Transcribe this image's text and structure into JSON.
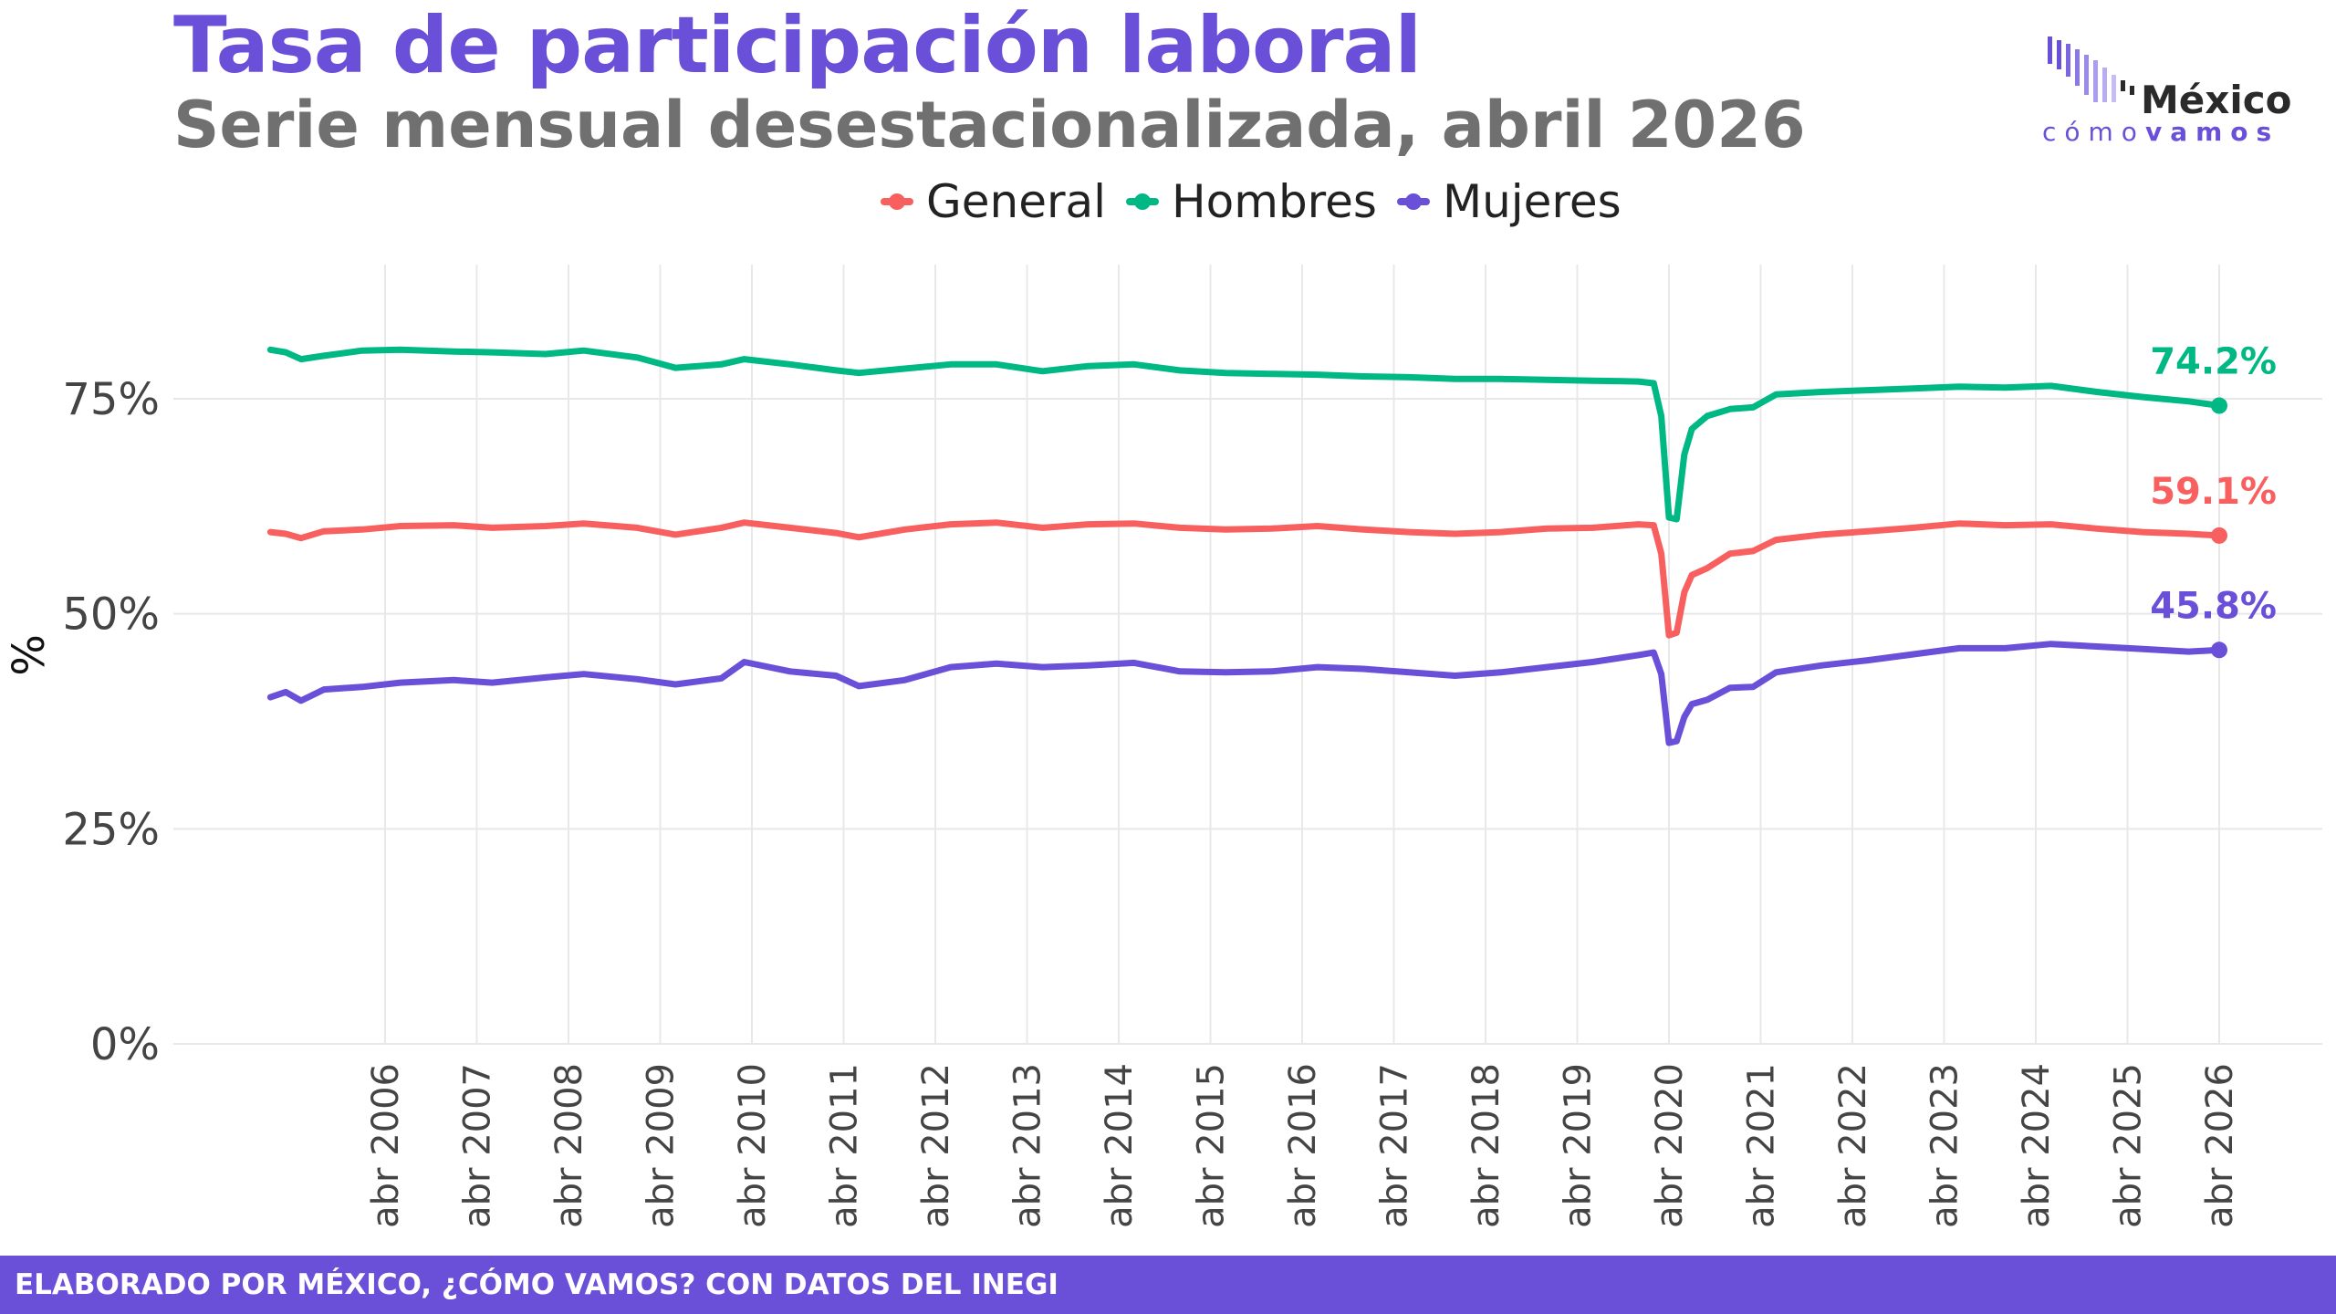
{
  "header": {
    "title": "Tasa de participación laboral",
    "subtitle": "Serie mensual desestacionalizada, abril 2026"
  },
  "logo": {
    "name": "México",
    "tagline_light": "cómo",
    "tagline_bold": "vamos"
  },
  "footer": {
    "credit": "ELABORADO POR MÉXICO, ¿CÓMO VAMOS? CON DATOS DEL INEGI"
  },
  "colors": {
    "title": "#6a4fd8",
    "general": "#f8605f",
    "hombres": "#00b884",
    "mujeres": "#6a4fd8",
    "footer_bg": "#6a4fd8",
    "grid": "#e8e8e8"
  },
  "chart_data": {
    "type": "line",
    "title": "Tasa de participación laboral",
    "subtitle": "Serie mensual desestacionalizada, abril 2026",
    "xlabel": "",
    "ylabel": "%",
    "ylim": [
      0,
      90
    ],
    "xlim": [
      "2005-01",
      "2026-04"
    ],
    "yticks": [
      0,
      25,
      50,
      75
    ],
    "ytick_labels": [
      "0%",
      "25%",
      "50%",
      "75%"
    ],
    "xtick_dates": [
      "2006-04",
      "2007-04",
      "2008-04",
      "2009-04",
      "2010-04",
      "2011-04",
      "2012-04",
      "2013-04",
      "2014-04",
      "2015-04",
      "2016-04",
      "2017-04",
      "2018-04",
      "2019-04",
      "2020-04",
      "2021-04",
      "2022-04",
      "2023-04",
      "2024-04",
      "2025-04",
      "2026-04"
    ],
    "xtick_labels": [
      "abr 2006",
      "abr 2007",
      "abr 2008",
      "abr 2009",
      "abr 2010",
      "abr 2011",
      "abr 2012",
      "abr 2013",
      "abr 2014",
      "abr 2015",
      "abr 2016",
      "abr 2017",
      "abr 2018",
      "abr 2019",
      "abr 2020",
      "abr 2021",
      "abr 2022",
      "abr 2023",
      "abr 2024",
      "abr 2025",
      "abr 2026"
    ],
    "grid": true,
    "legend_position": "top-center",
    "series": [
      {
        "name": "General",
        "color": "#f8605f",
        "end_label": "59.1%",
        "points": [
          [
            "2005-01",
            59.5
          ],
          [
            "2005-03",
            59.3
          ],
          [
            "2005-05",
            58.8
          ],
          [
            "2005-08",
            59.6
          ],
          [
            "2006-01",
            59.8
          ],
          [
            "2006-06",
            60.2
          ],
          [
            "2007-01",
            60.3
          ],
          [
            "2007-06",
            60.0
          ],
          [
            "2008-01",
            60.2
          ],
          [
            "2008-06",
            60.5
          ],
          [
            "2009-01",
            60.0
          ],
          [
            "2009-06",
            59.2
          ],
          [
            "2009-12",
            60.0
          ],
          [
            "2010-03",
            60.6
          ],
          [
            "2010-09",
            60.0
          ],
          [
            "2011-03",
            59.4
          ],
          [
            "2011-06",
            58.9
          ],
          [
            "2011-12",
            59.8
          ],
          [
            "2012-06",
            60.4
          ],
          [
            "2012-12",
            60.6
          ],
          [
            "2013-06",
            60.0
          ],
          [
            "2013-12",
            60.4
          ],
          [
            "2014-06",
            60.5
          ],
          [
            "2014-12",
            60.0
          ],
          [
            "2015-06",
            59.8
          ],
          [
            "2015-12",
            59.9
          ],
          [
            "2016-06",
            60.2
          ],
          [
            "2016-12",
            59.8
          ],
          [
            "2017-06",
            59.5
          ],
          [
            "2017-12",
            59.3
          ],
          [
            "2018-06",
            59.5
          ],
          [
            "2018-12",
            59.9
          ],
          [
            "2019-06",
            60.0
          ],
          [
            "2019-12",
            60.4
          ],
          [
            "2020-02",
            60.3
          ],
          [
            "2020-03",
            57.0
          ],
          [
            "2020-04",
            47.5
          ],
          [
            "2020-05",
            47.8
          ],
          [
            "2020-06",
            52.5
          ],
          [
            "2020-07",
            54.5
          ],
          [
            "2020-09",
            55.3
          ],
          [
            "2020-12",
            57.0
          ],
          [
            "2021-03",
            57.3
          ],
          [
            "2021-06",
            58.6
          ],
          [
            "2021-12",
            59.2
          ],
          [
            "2022-06",
            59.6
          ],
          [
            "2022-12",
            60.0
          ],
          [
            "2023-06",
            60.5
          ],
          [
            "2023-12",
            60.3
          ],
          [
            "2024-06",
            60.4
          ],
          [
            "2024-12",
            59.9
          ],
          [
            "2025-06",
            59.5
          ],
          [
            "2025-12",
            59.3
          ],
          [
            "2026-04",
            59.1
          ]
        ]
      },
      {
        "name": "Hombres",
        "color": "#00b884",
        "end_label": "74.2%",
        "points": [
          [
            "2005-01",
            80.7
          ],
          [
            "2005-03",
            80.4
          ],
          [
            "2005-05",
            79.6
          ],
          [
            "2005-08",
            80.0
          ],
          [
            "2006-01",
            80.6
          ],
          [
            "2006-06",
            80.7
          ],
          [
            "2007-01",
            80.5
          ],
          [
            "2007-06",
            80.4
          ],
          [
            "2008-01",
            80.2
          ],
          [
            "2008-06",
            80.6
          ],
          [
            "2009-01",
            79.8
          ],
          [
            "2009-06",
            78.6
          ],
          [
            "2009-12",
            79.0
          ],
          [
            "2010-03",
            79.6
          ],
          [
            "2010-09",
            79.0
          ],
          [
            "2011-03",
            78.3
          ],
          [
            "2011-06",
            78.0
          ],
          [
            "2011-12",
            78.5
          ],
          [
            "2012-06",
            79.0
          ],
          [
            "2012-12",
            79.0
          ],
          [
            "2013-06",
            78.2
          ],
          [
            "2013-12",
            78.8
          ],
          [
            "2014-06",
            79.0
          ],
          [
            "2014-12",
            78.3
          ],
          [
            "2015-06",
            78.0
          ],
          [
            "2015-12",
            77.9
          ],
          [
            "2016-06",
            77.8
          ],
          [
            "2016-12",
            77.6
          ],
          [
            "2017-06",
            77.5
          ],
          [
            "2017-12",
            77.3
          ],
          [
            "2018-06",
            77.3
          ],
          [
            "2018-12",
            77.2
          ],
          [
            "2019-06",
            77.1
          ],
          [
            "2019-12",
            77.0
          ],
          [
            "2020-02",
            76.8
          ],
          [
            "2020-03",
            73.0
          ],
          [
            "2020-04",
            61.2
          ],
          [
            "2020-05",
            61.0
          ],
          [
            "2020-06",
            68.5
          ],
          [
            "2020-07",
            71.5
          ],
          [
            "2020-09",
            73.0
          ],
          [
            "2020-12",
            73.8
          ],
          [
            "2021-03",
            74.0
          ],
          [
            "2021-06",
            75.5
          ],
          [
            "2021-12",
            75.8
          ],
          [
            "2022-06",
            76.0
          ],
          [
            "2022-12",
            76.2
          ],
          [
            "2023-06",
            76.4
          ],
          [
            "2023-12",
            76.3
          ],
          [
            "2024-06",
            76.5
          ],
          [
            "2024-12",
            75.8
          ],
          [
            "2025-06",
            75.2
          ],
          [
            "2025-12",
            74.7
          ],
          [
            "2026-04",
            74.2
          ]
        ]
      },
      {
        "name": "Mujeres",
        "color": "#6a4fd8",
        "end_label": "45.8%",
        "points": [
          [
            "2005-01",
            40.3
          ],
          [
            "2005-03",
            40.9
          ],
          [
            "2005-05",
            39.9
          ],
          [
            "2005-08",
            41.2
          ],
          [
            "2006-01",
            41.5
          ],
          [
            "2006-06",
            42.0
          ],
          [
            "2007-01",
            42.3
          ],
          [
            "2007-06",
            42.0
          ],
          [
            "2008-01",
            42.6
          ],
          [
            "2008-06",
            43.0
          ],
          [
            "2009-01",
            42.4
          ],
          [
            "2009-06",
            41.8
          ],
          [
            "2009-12",
            42.5
          ],
          [
            "2010-03",
            44.4
          ],
          [
            "2010-09",
            43.3
          ],
          [
            "2011-03",
            42.8
          ],
          [
            "2011-06",
            41.6
          ],
          [
            "2011-12",
            42.3
          ],
          [
            "2012-06",
            43.8
          ],
          [
            "2012-12",
            44.2
          ],
          [
            "2013-06",
            43.8
          ],
          [
            "2013-12",
            44.0
          ],
          [
            "2014-06",
            44.3
          ],
          [
            "2014-12",
            43.3
          ],
          [
            "2015-06",
            43.2
          ],
          [
            "2015-12",
            43.3
          ],
          [
            "2016-06",
            43.8
          ],
          [
            "2016-12",
            43.6
          ],
          [
            "2017-06",
            43.2
          ],
          [
            "2017-12",
            42.8
          ],
          [
            "2018-06",
            43.2
          ],
          [
            "2018-12",
            43.8
          ],
          [
            "2019-06",
            44.4
          ],
          [
            "2019-12",
            45.2
          ],
          [
            "2020-02",
            45.5
          ],
          [
            "2020-03",
            43.0
          ],
          [
            "2020-04",
            35.0
          ],
          [
            "2020-05",
            35.2
          ],
          [
            "2020-06",
            38.0
          ],
          [
            "2020-07",
            39.5
          ],
          [
            "2020-09",
            40.0
          ],
          [
            "2020-12",
            41.4
          ],
          [
            "2021-03",
            41.5
          ],
          [
            "2021-06",
            43.2
          ],
          [
            "2021-12",
            44.0
          ],
          [
            "2022-06",
            44.6
          ],
          [
            "2022-12",
            45.3
          ],
          [
            "2023-06",
            46.0
          ],
          [
            "2023-12",
            46.0
          ],
          [
            "2024-06",
            46.5
          ],
          [
            "2024-12",
            46.2
          ],
          [
            "2025-06",
            45.9
          ],
          [
            "2025-12",
            45.6
          ],
          [
            "2026-04",
            45.8
          ]
        ]
      }
    ]
  }
}
